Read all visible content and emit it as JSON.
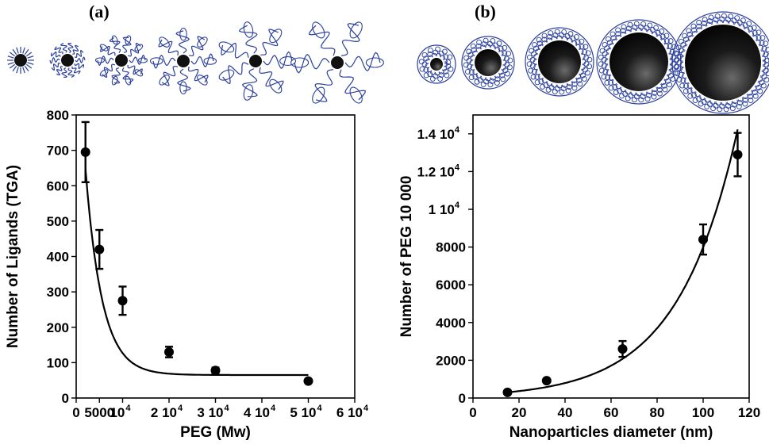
{
  "chart_data": [
    {
      "panel_label": "(a)",
      "type": "scatter",
      "xlabel": "PEG (Mw)",
      "ylabel": "Number of Ligands (TGA)",
      "xlim": [
        0,
        60000
      ],
      "ylim": [
        0,
        800
      ],
      "x_ticks": [
        {
          "v": 0,
          "base": "0",
          "exp": ""
        },
        {
          "v": 5000,
          "base": "5000",
          "exp": ""
        },
        {
          "v": 10000,
          "base": "10",
          "exp": "4"
        },
        {
          "v": 20000,
          "base": "2 10",
          "exp": "4"
        },
        {
          "v": 30000,
          "base": "3 10",
          "exp": "4"
        },
        {
          "v": 40000,
          "base": "4 10",
          "exp": "4"
        },
        {
          "v": 50000,
          "base": "5 10",
          "exp": "4"
        },
        {
          "v": 60000,
          "base": "6 10",
          "exp": "4"
        }
      ],
      "y_ticks": [
        {
          "v": 0,
          "base": "0",
          "exp": ""
        },
        {
          "v": 100,
          "base": "100",
          "exp": ""
        },
        {
          "v": 200,
          "base": "200",
          "exp": ""
        },
        {
          "v": 300,
          "base": "300",
          "exp": ""
        },
        {
          "v": 400,
          "base": "400",
          "exp": ""
        },
        {
          "v": 500,
          "base": "500",
          "exp": ""
        },
        {
          "v": 600,
          "base": "600",
          "exp": ""
        },
        {
          "v": 700,
          "base": "700",
          "exp": ""
        },
        {
          "v": 800,
          "base": "800",
          "exp": ""
        }
      ],
      "points": [
        {
          "x": 2000,
          "y": 695,
          "err": 85
        },
        {
          "x": 5000,
          "y": 420,
          "err": 55
        },
        {
          "x": 10000,
          "y": 275,
          "err": 40
        },
        {
          "x": 20000,
          "y": 130,
          "err": 15
        },
        {
          "x": 30000,
          "y": 78,
          "err": 8
        },
        {
          "x": 50000,
          "y": 48,
          "err": 5
        }
      ],
      "fit": {
        "model": "exponential_decay",
        "a": 1020,
        "k": 0.00028,
        "c": 65
      },
      "illustration": "PEG-coated nanoparticles with increasing PEG chain length"
    },
    {
      "panel_label": "(b)",
      "type": "scatter",
      "xlabel": "Nanoparticles diameter (nm)",
      "ylabel": "Number of PEG 10 000",
      "xlim": [
        0,
        120
      ],
      "ylim": [
        0,
        15000
      ],
      "x_ticks": [
        {
          "v": 0,
          "base": "0",
          "exp": ""
        },
        {
          "v": 20,
          "base": "20",
          "exp": ""
        },
        {
          "v": 40,
          "base": "40",
          "exp": ""
        },
        {
          "v": 60,
          "base": "60",
          "exp": ""
        },
        {
          "v": 80,
          "base": "80",
          "exp": ""
        },
        {
          "v": 100,
          "base": "100",
          "exp": ""
        },
        {
          "v": 120,
          "base": "120",
          "exp": ""
        }
      ],
      "y_ticks": [
        {
          "v": 0,
          "base": "0",
          "exp": ""
        },
        {
          "v": 2000,
          "base": "2000",
          "exp": ""
        },
        {
          "v": 4000,
          "base": "4000",
          "exp": ""
        },
        {
          "v": 6000,
          "base": "6000",
          "exp": ""
        },
        {
          "v": 8000,
          "base": "8000",
          "exp": ""
        },
        {
          "v": 10000,
          "base": "1 10",
          "exp": "4"
        },
        {
          "v": 12000,
          "base": "1.2 10",
          "exp": "4"
        },
        {
          "v": 14000,
          "base": "1.4 10",
          "exp": "4"
        }
      ],
      "points": [
        {
          "x": 15,
          "y": 300,
          "err": 0
        },
        {
          "x": 32,
          "y": 920,
          "err": 0
        },
        {
          "x": 65,
          "y": 2600,
          "err": 420
        },
        {
          "x": 100,
          "y": 8400,
          "err": 800
        },
        {
          "x": 115,
          "y": 12900,
          "err": 1150
        }
      ],
      "fit": {
        "model": "exponential_growth",
        "a": 170,
        "b": 0.0385,
        "x_from": 15,
        "x_to": 115
      },
      "illustration": "PEG-coated nanoparticles with increasing core diameter"
    }
  ]
}
